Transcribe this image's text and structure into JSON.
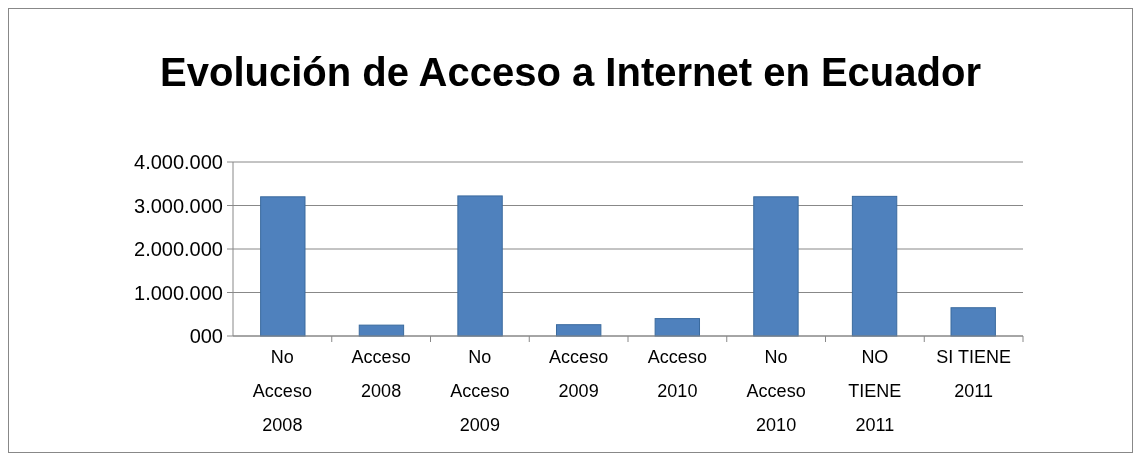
{
  "chart_data": {
    "type": "bar",
    "title": "Evolución de Acceso a Internet en Ecuador",
    "categories": [
      "No Acceso 2008",
      "Acceso 2008",
      "No Acceso 2009",
      "Acceso 2009",
      "Acceso 2010",
      "No Acceso 2010",
      "NO TIENE 2011",
      "SI TIENE 2011"
    ],
    "values": [
      3200000,
      250000,
      3220000,
      260000,
      400000,
      3200000,
      3210000,
      650000
    ],
    "color": "#4f81bd",
    "ylim": [
      0,
      4000000
    ],
    "yticks": [
      {
        "value": 0,
        "label": "000"
      },
      {
        "value": 1000000,
        "label": "1.000.000"
      },
      {
        "value": 2000000,
        "label": "2.000.000"
      },
      {
        "value": 3000000,
        "label": "3.000.000"
      },
      {
        "value": 4000000,
        "label": "4.000.000"
      }
    ],
    "grid": true
  }
}
